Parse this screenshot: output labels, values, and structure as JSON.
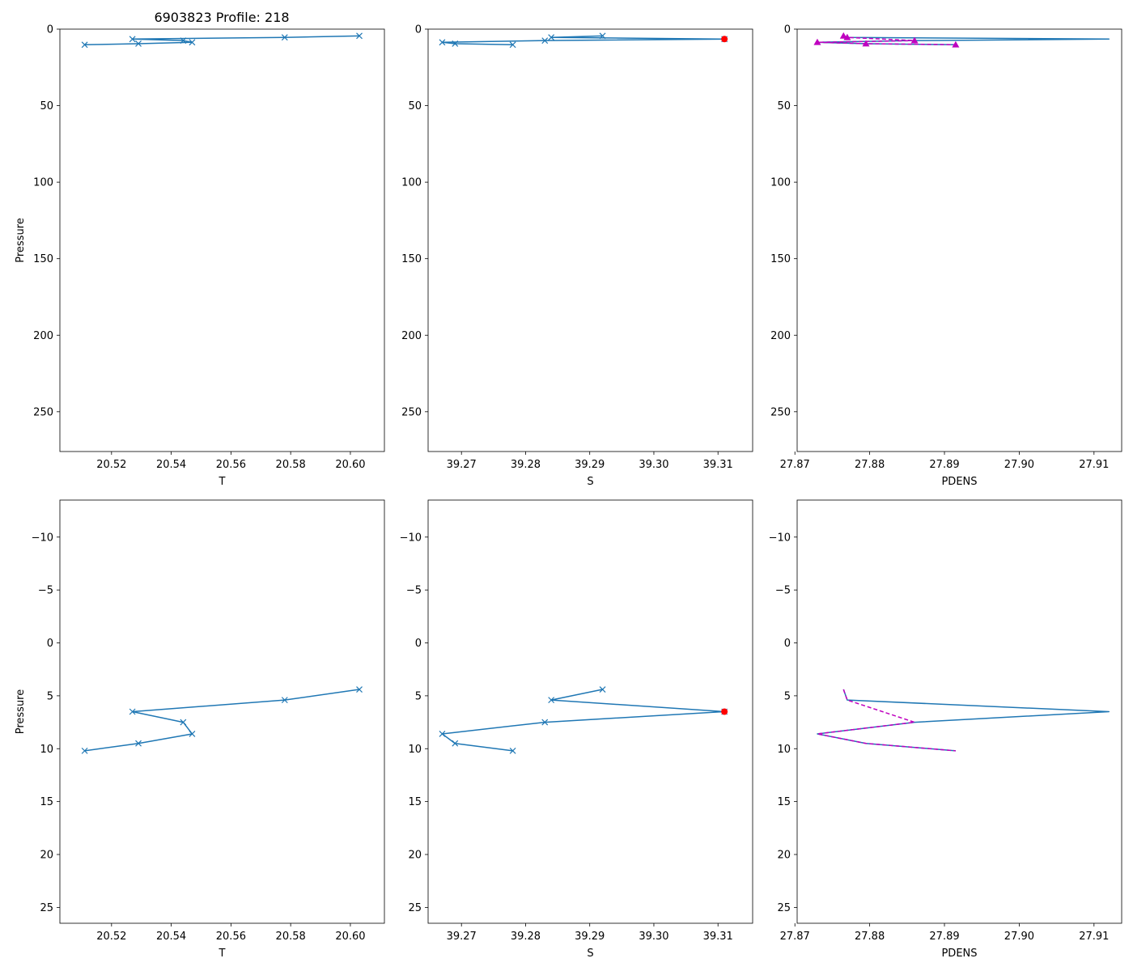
{
  "figure": {
    "title": "6903823 Profile: 218"
  },
  "colors": {
    "line": "#1f77b4",
    "flag": "#ff0000",
    "pdens_marker": "#bf00bf",
    "axes": "#000000",
    "background": "#ffffff"
  },
  "profile": {
    "pressure": [
      4.4,
      5.4,
      6.5,
      7.5,
      8.6,
      9.5,
      10.2
    ],
    "T": [
      20.603,
      20.578,
      20.527,
      20.544,
      20.547,
      20.529,
      20.511
    ],
    "S": [
      39.292,
      39.284,
      39.311,
      39.283,
      39.267,
      39.269,
      39.278
    ],
    "PDENS": [
      27.8765,
      27.877,
      27.912,
      27.886,
      27.873,
      27.8795,
      27.8915
    ]
  },
  "chart_data": [
    {
      "id": "top-T",
      "type": "line",
      "title": "6903823 Profile: 218",
      "xlabel": "T",
      "ylabel": "Pressure",
      "xlim": [
        20.5027,
        20.6114
      ],
      "ylim": [
        276,
        0
      ],
      "invert_y": true,
      "xticks": [
        20.52,
        20.54,
        20.56,
        20.58,
        20.6
      ],
      "xtick_labels": [
        "20.52",
        "20.54",
        "20.56",
        "20.58",
        "20.60"
      ],
      "yticks": [
        0,
        50,
        100,
        150,
        200,
        250
      ],
      "ytick_labels": [
        "0",
        "50",
        "100",
        "150",
        "200",
        "250"
      ],
      "series": [
        {
          "name": "T",
          "x_key": "T",
          "marker": "x",
          "color": "line"
        }
      ]
    },
    {
      "id": "top-S",
      "type": "line",
      "xlabel": "S",
      "ylabel": "",
      "xlim": [
        39.2648,
        39.3154
      ],
      "ylim": [
        276,
        0
      ],
      "invert_y": true,
      "xticks": [
        39.27,
        39.28,
        39.29,
        39.3,
        39.31
      ],
      "xtick_labels": [
        "39.27",
        "39.28",
        "39.29",
        "39.30",
        "39.31"
      ],
      "yticks": [
        0,
        50,
        100,
        150,
        200,
        250
      ],
      "ytick_labels": [
        "0",
        "50",
        "100",
        "150",
        "200",
        "250"
      ],
      "series": [
        {
          "name": "S",
          "x_key": "S",
          "marker": "x",
          "color": "line"
        },
        {
          "name": "flagged",
          "type": "scatter",
          "points": [
            {
              "x": 39.311,
              "y": 6.5
            }
          ],
          "marker": "o",
          "color": "flag"
        }
      ]
    },
    {
      "id": "top-PDENS",
      "type": "line",
      "xlabel": "PDENS",
      "ylabel": "",
      "xlim": [
        27.8703,
        27.9137
      ],
      "ylim": [
        276,
        0
      ],
      "invert_y": true,
      "xticks": [
        27.87,
        27.88,
        27.89,
        27.9,
        27.91
      ],
      "xtick_labels": [
        "27.87",
        "27.88",
        "27.89",
        "27.90",
        "27.91"
      ],
      "yticks": [
        0,
        50,
        100,
        150,
        200,
        250
      ],
      "ytick_labels": [
        "0",
        "50",
        "100",
        "150",
        "200",
        "250"
      ],
      "series": [
        {
          "name": "PDENS",
          "x_key": "PDENS",
          "marker": "none",
          "color": "line"
        },
        {
          "name": "PDENS reference",
          "x_key": "PDENS",
          "skip_index": 2,
          "marker": "^",
          "dashed": true,
          "color": "pdens_marker"
        }
      ]
    },
    {
      "id": "bottom-T",
      "type": "line",
      "xlabel": "T",
      "ylabel": "Pressure",
      "xlim": [
        20.5027,
        20.6114
      ],
      "ylim": [
        26.5,
        -13.5
      ],
      "invert_y": true,
      "xticks": [
        20.52,
        20.54,
        20.56,
        20.58,
        20.6
      ],
      "xtick_labels": [
        "20.52",
        "20.54",
        "20.56",
        "20.58",
        "20.60"
      ],
      "yticks": [
        -10,
        -5,
        0,
        5,
        10,
        15,
        20,
        25
      ],
      "ytick_labels": [
        "−10",
        "−5",
        "0",
        "5",
        "10",
        "15",
        "20",
        "25"
      ],
      "series": [
        {
          "name": "T",
          "x_key": "T",
          "marker": "x",
          "color": "line"
        }
      ]
    },
    {
      "id": "bottom-S",
      "type": "line",
      "xlabel": "S",
      "ylabel": "",
      "xlim": [
        39.2648,
        39.3154
      ],
      "ylim": [
        26.5,
        -13.5
      ],
      "invert_y": true,
      "xticks": [
        39.27,
        39.28,
        39.29,
        39.3,
        39.31
      ],
      "xtick_labels": [
        "39.27",
        "39.28",
        "39.29",
        "39.30",
        "39.31"
      ],
      "yticks": [
        -10,
        -5,
        0,
        5,
        10,
        15,
        20,
        25
      ],
      "ytick_labels": [
        "−10",
        "−5",
        "0",
        "5",
        "10",
        "15",
        "20",
        "25"
      ],
      "series": [
        {
          "name": "S",
          "x_key": "S",
          "marker": "x",
          "color": "line"
        },
        {
          "name": "flagged",
          "type": "scatter",
          "points": [
            {
              "x": 39.311,
              "y": 6.5
            }
          ],
          "marker": "o",
          "color": "flag"
        }
      ]
    },
    {
      "id": "bottom-PDENS",
      "type": "line",
      "xlabel": "PDENS",
      "ylabel": "",
      "xlim": [
        27.8703,
        27.9137
      ],
      "ylim": [
        26.5,
        -13.5
      ],
      "invert_y": true,
      "xticks": [
        27.87,
        27.88,
        27.89,
        27.9,
        27.91
      ],
      "xtick_labels": [
        "27.87",
        "27.88",
        "27.89",
        "27.90",
        "27.91"
      ],
      "yticks": [
        -10,
        -5,
        0,
        5,
        10,
        15,
        20,
        25
      ],
      "ytick_labels": [
        "−10",
        "−5",
        "0",
        "5",
        "10",
        "15",
        "20",
        "25"
      ],
      "series": [
        {
          "name": "PDENS",
          "x_key": "PDENS",
          "marker": "none",
          "color": "line"
        },
        {
          "name": "PDENS reference",
          "x_key": "PDENS",
          "skip_index": 2,
          "marker": "none",
          "dashed": true,
          "color": "pdens_marker"
        }
      ]
    }
  ]
}
